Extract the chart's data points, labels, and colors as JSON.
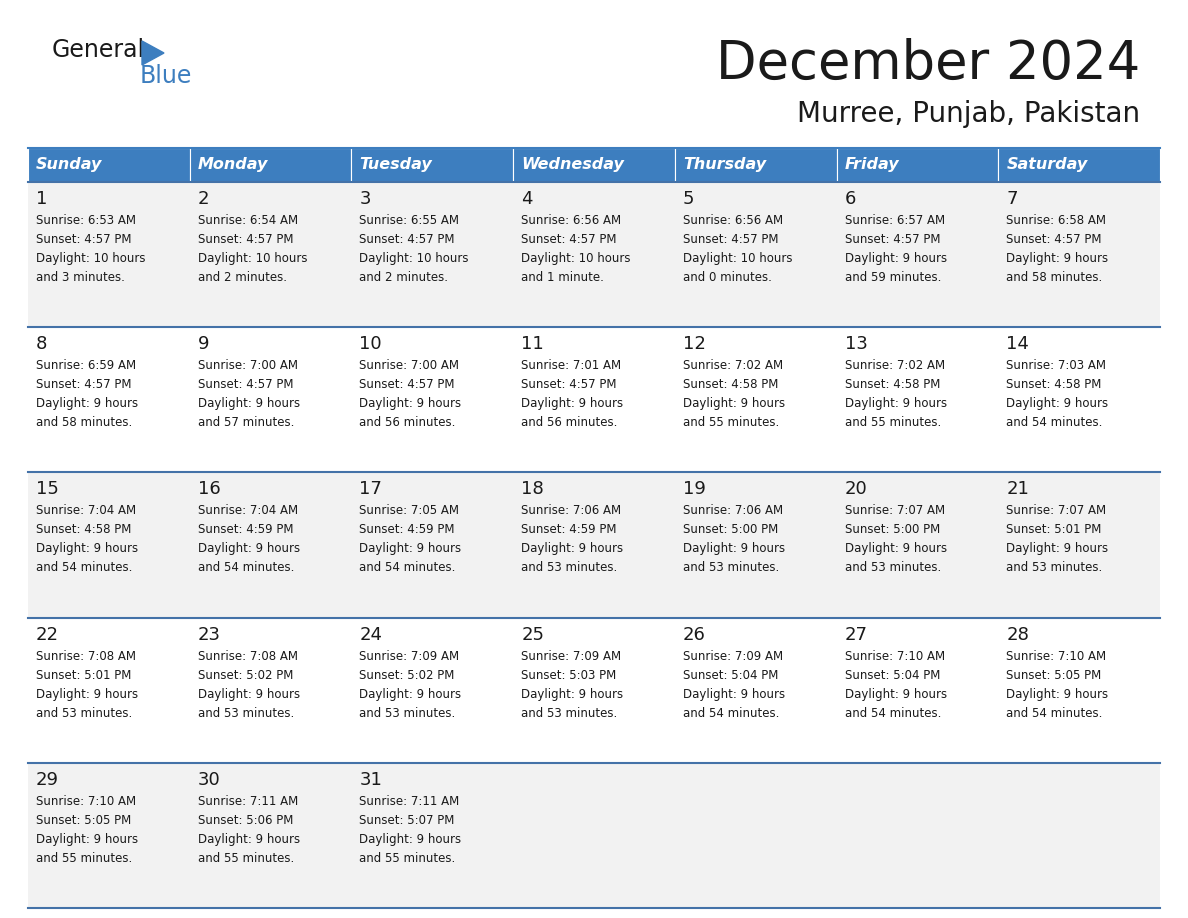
{
  "title": "December 2024",
  "subtitle": "Murree, Punjab, Pakistan",
  "header_color": "#3d7ebf",
  "header_text_color": "#ffffff",
  "border_color": "#4472a8",
  "row_colors": [
    "#f2f2f2",
    "#ffffff"
  ],
  "days_of_week": [
    "Sunday",
    "Monday",
    "Tuesday",
    "Wednesday",
    "Thursday",
    "Friday",
    "Saturday"
  ],
  "weeks": [
    [
      {
        "day": "1",
        "sunrise": "6:53 AM",
        "sunset": "4:57 PM",
        "daylight1": "Daylight: 10 hours",
        "daylight2": "and 3 minutes."
      },
      {
        "day": "2",
        "sunrise": "6:54 AM",
        "sunset": "4:57 PM",
        "daylight1": "Daylight: 10 hours",
        "daylight2": "and 2 minutes."
      },
      {
        "day": "3",
        "sunrise": "6:55 AM",
        "sunset": "4:57 PM",
        "daylight1": "Daylight: 10 hours",
        "daylight2": "and 2 minutes."
      },
      {
        "day": "4",
        "sunrise": "6:56 AM",
        "sunset": "4:57 PM",
        "daylight1": "Daylight: 10 hours",
        "daylight2": "and 1 minute."
      },
      {
        "day": "5",
        "sunrise": "6:56 AM",
        "sunset": "4:57 PM",
        "daylight1": "Daylight: 10 hours",
        "daylight2": "and 0 minutes."
      },
      {
        "day": "6",
        "sunrise": "6:57 AM",
        "sunset": "4:57 PM",
        "daylight1": "Daylight: 9 hours",
        "daylight2": "and 59 minutes."
      },
      {
        "day": "7",
        "sunrise": "6:58 AM",
        "sunset": "4:57 PM",
        "daylight1": "Daylight: 9 hours",
        "daylight2": "and 58 minutes."
      }
    ],
    [
      {
        "day": "8",
        "sunrise": "6:59 AM",
        "sunset": "4:57 PM",
        "daylight1": "Daylight: 9 hours",
        "daylight2": "and 58 minutes."
      },
      {
        "day": "9",
        "sunrise": "7:00 AM",
        "sunset": "4:57 PM",
        "daylight1": "Daylight: 9 hours",
        "daylight2": "and 57 minutes."
      },
      {
        "day": "10",
        "sunrise": "7:00 AM",
        "sunset": "4:57 PM",
        "daylight1": "Daylight: 9 hours",
        "daylight2": "and 56 minutes."
      },
      {
        "day": "11",
        "sunrise": "7:01 AM",
        "sunset": "4:57 PM",
        "daylight1": "Daylight: 9 hours",
        "daylight2": "and 56 minutes."
      },
      {
        "day": "12",
        "sunrise": "7:02 AM",
        "sunset": "4:58 PM",
        "daylight1": "Daylight: 9 hours",
        "daylight2": "and 55 minutes."
      },
      {
        "day": "13",
        "sunrise": "7:02 AM",
        "sunset": "4:58 PM",
        "daylight1": "Daylight: 9 hours",
        "daylight2": "and 55 minutes."
      },
      {
        "day": "14",
        "sunrise": "7:03 AM",
        "sunset": "4:58 PM",
        "daylight1": "Daylight: 9 hours",
        "daylight2": "and 54 minutes."
      }
    ],
    [
      {
        "day": "15",
        "sunrise": "7:04 AM",
        "sunset": "4:58 PM",
        "daylight1": "Daylight: 9 hours",
        "daylight2": "and 54 minutes."
      },
      {
        "day": "16",
        "sunrise": "7:04 AM",
        "sunset": "4:59 PM",
        "daylight1": "Daylight: 9 hours",
        "daylight2": "and 54 minutes."
      },
      {
        "day": "17",
        "sunrise": "7:05 AM",
        "sunset": "4:59 PM",
        "daylight1": "Daylight: 9 hours",
        "daylight2": "and 54 minutes."
      },
      {
        "day": "18",
        "sunrise": "7:06 AM",
        "sunset": "4:59 PM",
        "daylight1": "Daylight: 9 hours",
        "daylight2": "and 53 minutes."
      },
      {
        "day": "19",
        "sunrise": "7:06 AM",
        "sunset": "5:00 PM",
        "daylight1": "Daylight: 9 hours",
        "daylight2": "and 53 minutes."
      },
      {
        "day": "20",
        "sunrise": "7:07 AM",
        "sunset": "5:00 PM",
        "daylight1": "Daylight: 9 hours",
        "daylight2": "and 53 minutes."
      },
      {
        "day": "21",
        "sunrise": "7:07 AM",
        "sunset": "5:01 PM",
        "daylight1": "Daylight: 9 hours",
        "daylight2": "and 53 minutes."
      }
    ],
    [
      {
        "day": "22",
        "sunrise": "7:08 AM",
        "sunset": "5:01 PM",
        "daylight1": "Daylight: 9 hours",
        "daylight2": "and 53 minutes."
      },
      {
        "day": "23",
        "sunrise": "7:08 AM",
        "sunset": "5:02 PM",
        "daylight1": "Daylight: 9 hours",
        "daylight2": "and 53 minutes."
      },
      {
        "day": "24",
        "sunrise": "7:09 AM",
        "sunset": "5:02 PM",
        "daylight1": "Daylight: 9 hours",
        "daylight2": "and 53 minutes."
      },
      {
        "day": "25",
        "sunrise": "7:09 AM",
        "sunset": "5:03 PM",
        "daylight1": "Daylight: 9 hours",
        "daylight2": "and 53 minutes."
      },
      {
        "day": "26",
        "sunrise": "7:09 AM",
        "sunset": "5:04 PM",
        "daylight1": "Daylight: 9 hours",
        "daylight2": "and 54 minutes."
      },
      {
        "day": "27",
        "sunrise": "7:10 AM",
        "sunset": "5:04 PM",
        "daylight1": "Daylight: 9 hours",
        "daylight2": "and 54 minutes."
      },
      {
        "day": "28",
        "sunrise": "7:10 AM",
        "sunset": "5:05 PM",
        "daylight1": "Daylight: 9 hours",
        "daylight2": "and 54 minutes."
      }
    ],
    [
      {
        "day": "29",
        "sunrise": "7:10 AM",
        "sunset": "5:05 PM",
        "daylight1": "Daylight: 9 hours",
        "daylight2": "and 55 minutes."
      },
      {
        "day": "30",
        "sunrise": "7:11 AM",
        "sunset": "5:06 PM",
        "daylight1": "Daylight: 9 hours",
        "daylight2": "and 55 minutes."
      },
      {
        "day": "31",
        "sunrise": "7:11 AM",
        "sunset": "5:07 PM",
        "daylight1": "Daylight: 9 hours",
        "daylight2": "and 55 minutes."
      },
      null,
      null,
      null,
      null
    ]
  ]
}
